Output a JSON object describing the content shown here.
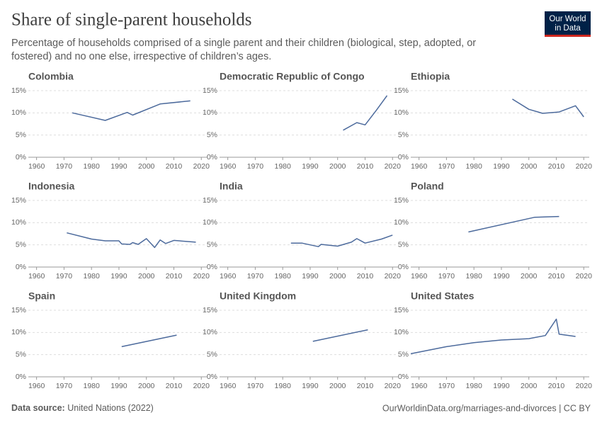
{
  "title": "Share of single-parent households",
  "subtitle": [
    "Percentage of households comprised of a single parent and their children (biological, step, adopted, or",
    "fostered) and no one else, irrespective of children’s ages."
  ],
  "logo": [
    "Our World",
    "in Data"
  ],
  "source_label": "Data source:",
  "source": "United Nations (2022)",
  "url": "OurWorldinData.org/marriages-and-divorces | CC BY",
  "chart_data": [
    {
      "type": "line",
      "title": "Colombia",
      "x": [
        1973,
        1985,
        1993,
        1995,
        2005,
        2016
      ],
      "values": [
        10.0,
        8.3,
        10.1,
        9.5,
        12.0,
        12.7
      ],
      "color": "#4c6a9c",
      "xlim": [
        1957,
        2022
      ],
      "ylim": [
        0,
        15
      ],
      "xticks": [
        1960,
        1970,
        1980,
        1990,
        2000,
        2010,
        2020
      ],
      "yticks": [
        {
          "value": 0,
          "label": "0%"
        },
        {
          "value": 5,
          "label": "5%"
        },
        {
          "value": 10,
          "label": "10%"
        },
        {
          "value": 15,
          "label": "15%"
        }
      ]
    },
    {
      "type": "line",
      "title": "Democratic Republic of Congo",
      "x": [
        2002,
        2007,
        2010,
        2014,
        2018
      ],
      "values": [
        6.1,
        7.8,
        7.3,
        10.5,
        13.9
      ],
      "color": "#4c6a9c",
      "xlim": [
        1957,
        2022
      ],
      "ylim": [
        0,
        15
      ],
      "xticks": [
        1960,
        1970,
        1980,
        1990,
        2000,
        2010,
        2020
      ],
      "yticks": [
        {
          "value": 0,
          "label": "0%"
        },
        {
          "value": 5,
          "label": "5%"
        },
        {
          "value": 10,
          "label": "10%"
        },
        {
          "value": 15,
          "label": "15%"
        }
      ]
    },
    {
      "type": "line",
      "title": "Ethiopia",
      "x": [
        1994,
        2000,
        2005,
        2011,
        2017,
        2020
      ],
      "values": [
        13.1,
        10.8,
        9.9,
        10.2,
        11.6,
        9.1
      ],
      "color": "#4c6a9c",
      "xlim": [
        1957,
        2022
      ],
      "ylim": [
        0,
        15
      ],
      "xticks": [
        1960,
        1970,
        1980,
        1990,
        2000,
        2010,
        2020
      ],
      "yticks": [
        {
          "value": 0,
          "label": "0%"
        },
        {
          "value": 5,
          "label": "5%"
        },
        {
          "value": 10,
          "label": "10%"
        },
        {
          "value": 15,
          "label": "15%"
        }
      ]
    },
    {
      "type": "line",
      "title": "Indonesia",
      "x": [
        1971,
        1980,
        1985,
        1990,
        1991,
        1994,
        1995,
        1997,
        2000,
        2003,
        2005,
        2007,
        2010,
        2018
      ],
      "values": [
        7.7,
        6.3,
        5.9,
        5.9,
        5.2,
        5.1,
        5.5,
        5.1,
        6.4,
        4.4,
        6.1,
        5.3,
        6.0,
        5.6
      ],
      "color": "#4c6a9c",
      "xlim": [
        1957,
        2022
      ],
      "ylim": [
        0,
        15
      ],
      "xticks": [
        1960,
        1970,
        1980,
        1990,
        2000,
        2010,
        2020
      ],
      "yticks": [
        {
          "value": 0,
          "label": "0%"
        },
        {
          "value": 5,
          "label": "5%"
        },
        {
          "value": 10,
          "label": "10%"
        },
        {
          "value": 15,
          "label": "15%"
        }
      ]
    },
    {
      "type": "line",
      "title": "India",
      "x": [
        1983,
        1987,
        1993,
        1994,
        2000,
        2005,
        2007,
        2010,
        2016,
        2020
      ],
      "values": [
        5.4,
        5.4,
        4.6,
        5.1,
        4.7,
        5.6,
        6.4,
        5.4,
        6.3,
        7.2
      ],
      "color": "#4c6a9c",
      "xlim": [
        1957,
        2022
      ],
      "ylim": [
        0,
        15
      ],
      "xticks": [
        1960,
        1970,
        1980,
        1990,
        2000,
        2010,
        2020
      ],
      "yticks": [
        {
          "value": 0,
          "label": "0%"
        },
        {
          "value": 5,
          "label": "5%"
        },
        {
          "value": 10,
          "label": "10%"
        },
        {
          "value": 15,
          "label": "15%"
        }
      ]
    },
    {
      "type": "line",
      "title": "Poland",
      "x": [
        1978,
        2002,
        2011
      ],
      "values": [
        7.9,
        11.2,
        11.4
      ],
      "color": "#4c6a9c",
      "xlim": [
        1957,
        2022
      ],
      "ylim": [
        0,
        15
      ],
      "xticks": [
        1960,
        1970,
        1980,
        1990,
        2000,
        2010,
        2020
      ],
      "yticks": [
        {
          "value": 0,
          "label": "0%"
        },
        {
          "value": 5,
          "label": "5%"
        },
        {
          "value": 10,
          "label": "10%"
        },
        {
          "value": 15,
          "label": "15%"
        }
      ]
    },
    {
      "type": "line",
      "title": "Spain",
      "x": [
        1991,
        2011
      ],
      "values": [
        6.8,
        9.4
      ],
      "color": "#4c6a9c",
      "xlim": [
        1957,
        2022
      ],
      "ylim": [
        0,
        15
      ],
      "xticks": [
        1960,
        1970,
        1980,
        1990,
        2000,
        2010,
        2020
      ],
      "yticks": [
        {
          "value": 0,
          "label": "0%"
        },
        {
          "value": 5,
          "label": "5%"
        },
        {
          "value": 10,
          "label": "10%"
        },
        {
          "value": 15,
          "label": "15%"
        }
      ]
    },
    {
      "type": "line",
      "title": "United Kingdom",
      "x": [
        1991,
        2011
      ],
      "values": [
        8.0,
        10.6
      ],
      "color": "#4c6a9c",
      "xlim": [
        1957,
        2022
      ],
      "ylim": [
        0,
        15
      ],
      "xticks": [
        1960,
        1970,
        1980,
        1990,
        2000,
        2010,
        2020
      ],
      "yticks": [
        {
          "value": 0,
          "label": "0%"
        },
        {
          "value": 5,
          "label": "5%"
        },
        {
          "value": 10,
          "label": "10%"
        },
        {
          "value": 15,
          "label": "15%"
        }
      ]
    },
    {
      "type": "line",
      "title": "United States",
      "x": [
        1957,
        1970,
        1980,
        1990,
        2000,
        2006,
        2010,
        2011,
        2017
      ],
      "values": [
        5.2,
        6.8,
        7.7,
        8.3,
        8.6,
        9.3,
        13.0,
        9.6,
        9.1
      ],
      "color": "#4c6a9c",
      "xlim": [
        1957,
        2022
      ],
      "ylim": [
        0,
        15
      ],
      "xticks": [
        1960,
        1970,
        1980,
        1990,
        2000,
        2010,
        2020
      ],
      "yticks": [
        {
          "value": 0,
          "label": "0%"
        },
        {
          "value": 5,
          "label": "5%"
        },
        {
          "value": 10,
          "label": "10%"
        },
        {
          "value": 15,
          "label": "15%"
        }
      ]
    }
  ]
}
